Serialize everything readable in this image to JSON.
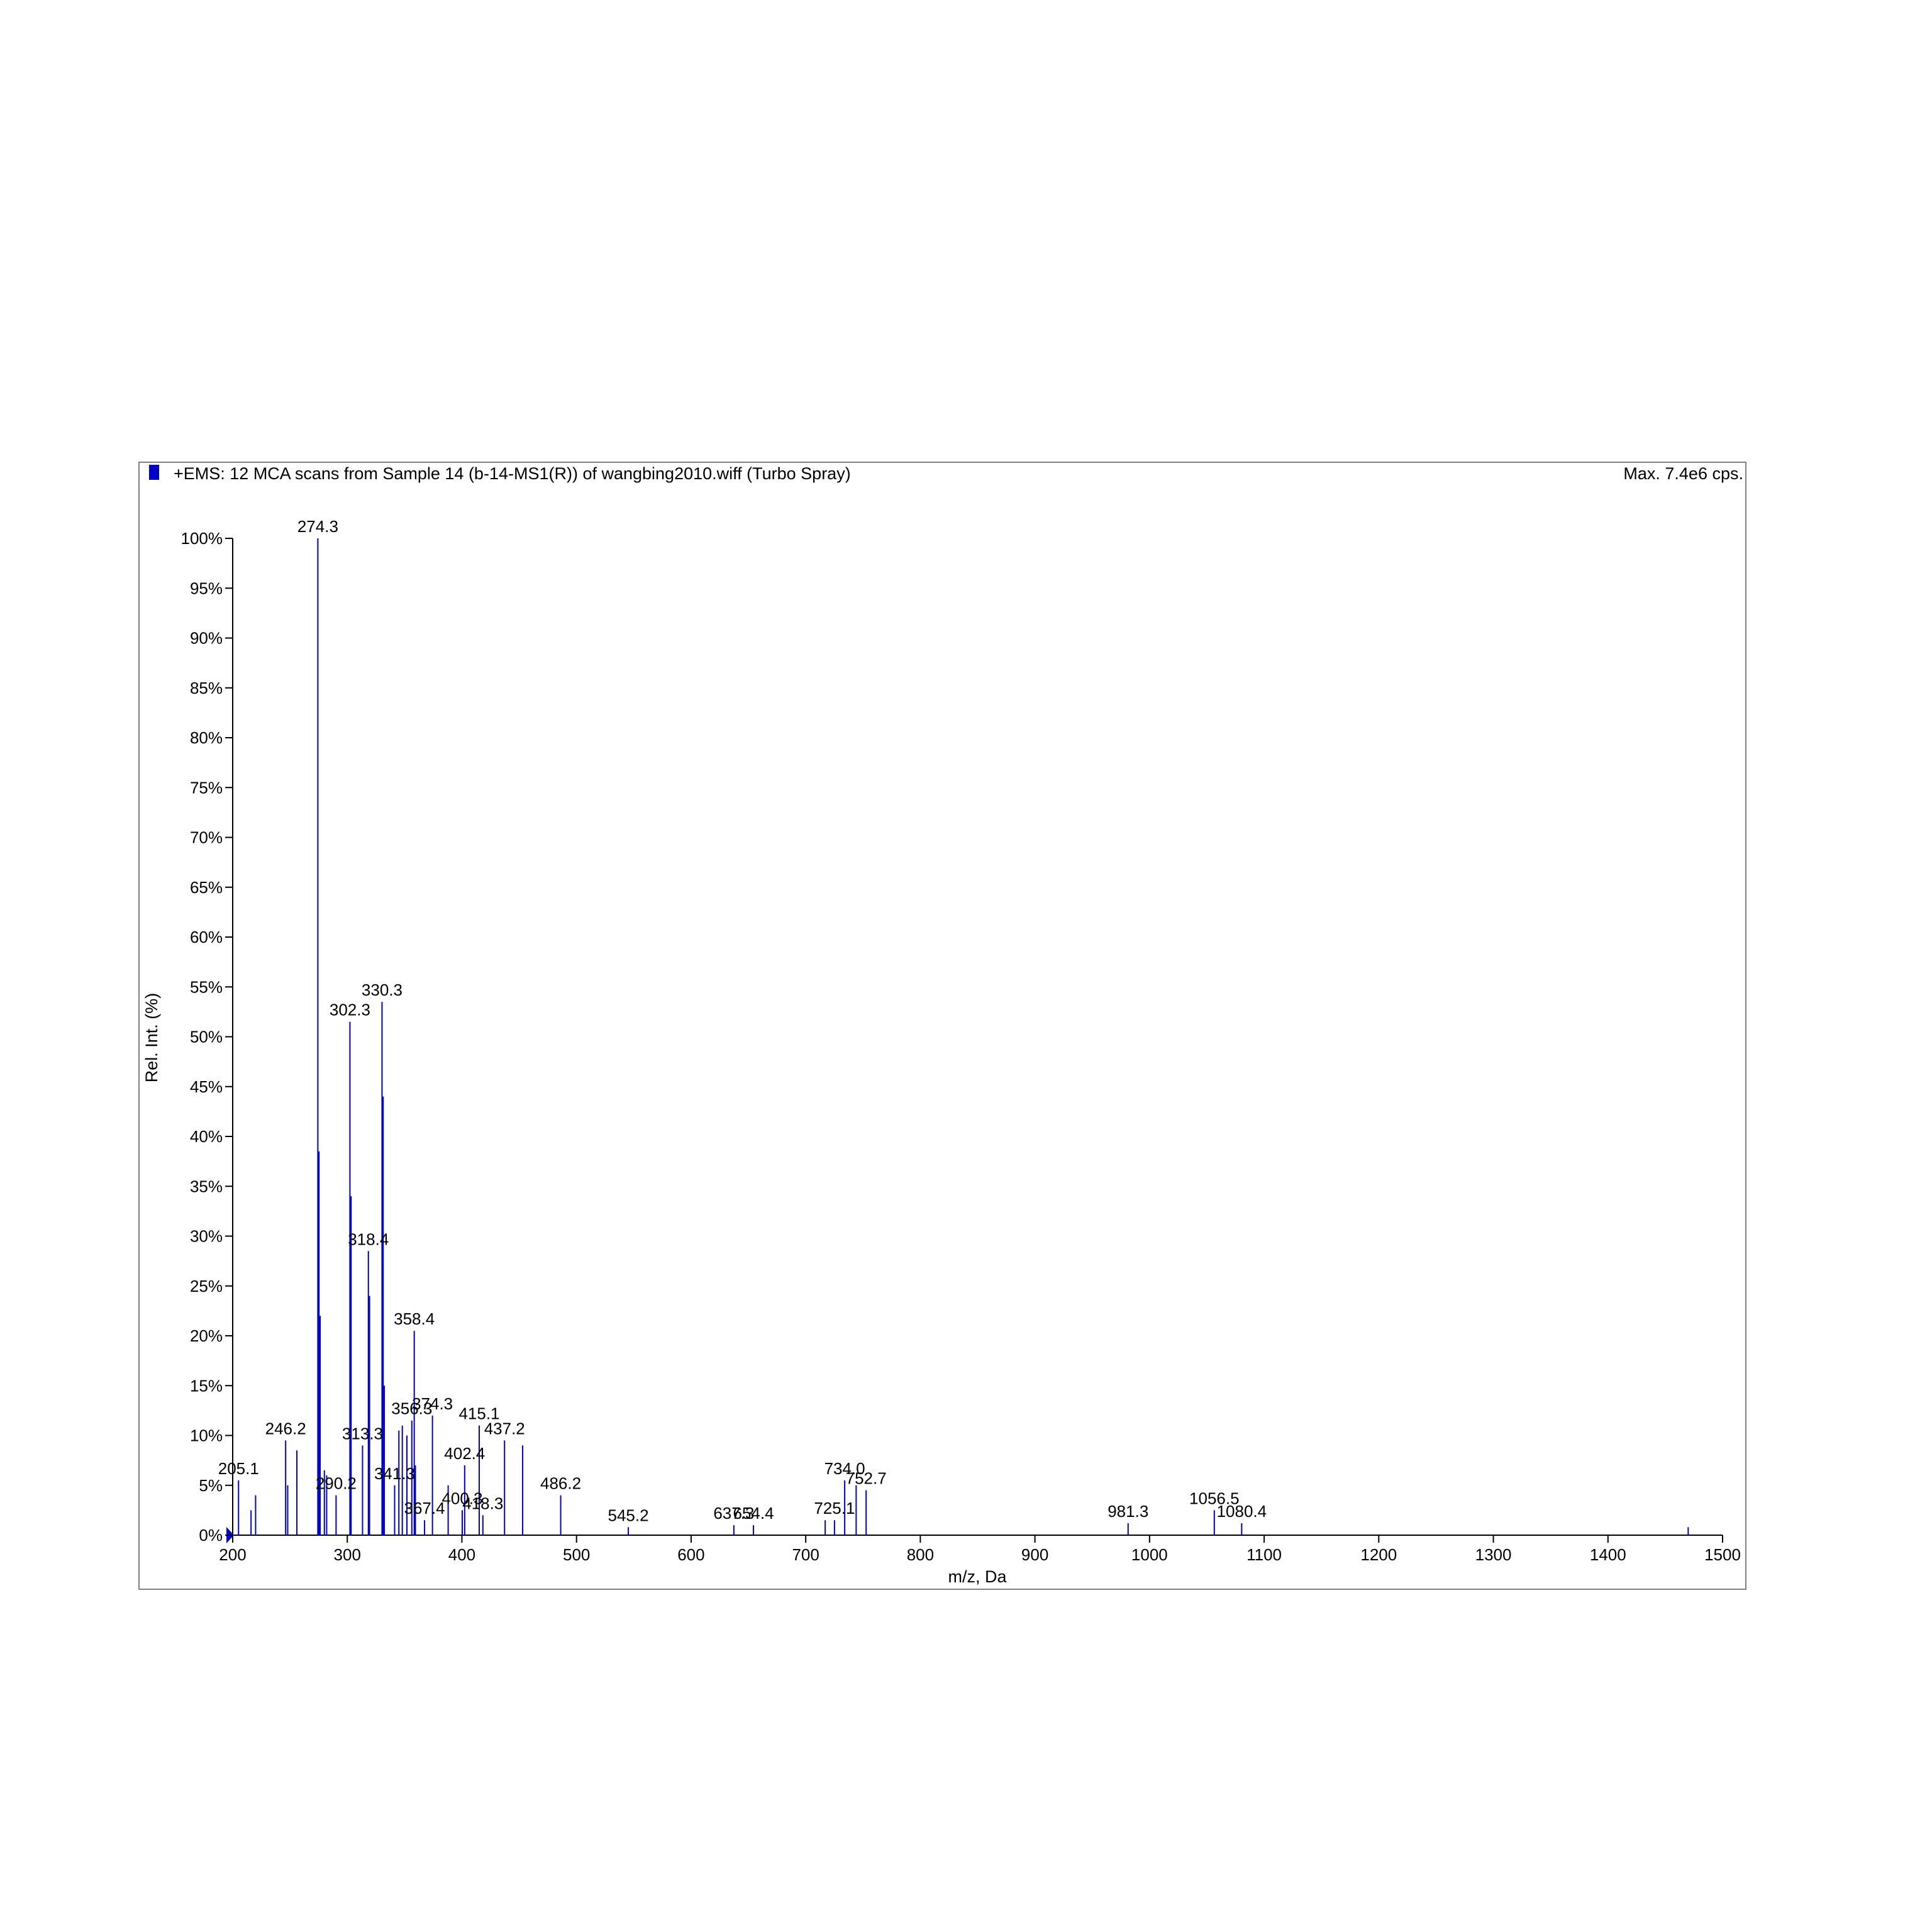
{
  "chart_data": {
    "type": "spectrum",
    "title": "+EMS: 12 MCA scans from Sample 14 (b-14-MS1(R)) of wangbing2010.wiff (Turbo Spray)",
    "max_label": "Max. 7.4e6 cps.",
    "x_label": "m/z, Da",
    "y_label": "Rel. Int. (%)",
    "color": "#0000cc",
    "peaks": {
      "x": [
        274.3,
        302.3,
        330.3,
        318.4,
        358.4,
        356.3,
        374.3,
        415.1,
        437.2,
        246.2,
        313.3,
        205.1,
        290.2,
        341.3,
        402.4,
        400.3,
        418.3,
        367.4,
        486.2,
        545.2,
        637.3,
        654.4,
        725.1,
        734,
        752.7,
        981.3,
        1056.5,
        1080.4
      ],
      "labels": [
        "274.3",
        "302.3",
        "330.3",
        "318.4",
        "358.4",
        "356.3",
        "374.3",
        "415.1",
        "437.2",
        "246.2",
        "313.3",
        "205.1",
        "290.2",
        "341.3",
        "402.4",
        "400.3",
        "418.3",
        "367.4",
        "486.2",
        "545.2",
        "637.3",
        "654.4",
        "725.1",
        "734.0",
        "752.7",
        "981.3",
        "1056.5",
        "1080.4"
      ],
      "values": [
        100,
        51.5,
        53.5,
        28.5,
        20.5,
        11.5,
        12,
        11,
        9.5,
        9.5,
        9,
        5.5,
        4,
        5,
        7,
        2.5,
        2,
        1.5,
        4,
        0.8,
        1,
        1,
        1.5,
        5.5,
        4.5,
        1.2,
        2.5,
        1.2
      ]
    },
    "minor_peaks": {
      "x": [
        275.3,
        276.3,
        303.3,
        331.3,
        332.3,
        319.4,
        359.4,
        256,
        248,
        280,
        282,
        345,
        348,
        352,
        388,
        453,
        744,
        717,
        1470,
        220,
        216
      ],
      "values": [
        38.5,
        22,
        34,
        44,
        15,
        24,
        7,
        8.5,
        5,
        6.5,
        6,
        10.5,
        11,
        10,
        5,
        9,
        5,
        1.5,
        0.8,
        4,
        2.5
      ]
    },
    "xlim": [
      200,
      1500
    ],
    "xticks": [
      200,
      300,
      400,
      500,
      600,
      700,
      800,
      900,
      1000,
      1100,
      1200,
      1300,
      1400,
      1500
    ],
    "ylim": [
      0,
      100
    ],
    "yticks": [
      {
        "value": 0,
        "label": "0%"
      },
      {
        "value": 5,
        "label": "5%"
      },
      {
        "value": 10,
        "label": "10%"
      },
      {
        "value": 15,
        "label": "15%"
      },
      {
        "value": 20,
        "label": "20%"
      },
      {
        "value": 25,
        "label": "25%"
      },
      {
        "value": 30,
        "label": "30%"
      },
      {
        "value": 35,
        "label": "35%"
      },
      {
        "value": 40,
        "label": "40%"
      },
      {
        "value": 45,
        "label": "45%"
      },
      {
        "value": 50,
        "label": "50%"
      },
      {
        "value": 55,
        "label": "55%"
      },
      {
        "value": 60,
        "label": "60%"
      },
      {
        "value": 65,
        "label": "65%"
      },
      {
        "value": 70,
        "label": "70%"
      },
      {
        "value": 75,
        "label": "75%"
      },
      {
        "value": 80,
        "label": "80%"
      },
      {
        "value": 85,
        "label": "85%"
      },
      {
        "value": 90,
        "label": "90%"
      },
      {
        "value": 95,
        "label": "95%"
      },
      {
        "value": 100,
        "label": "100%"
      }
    ]
  }
}
